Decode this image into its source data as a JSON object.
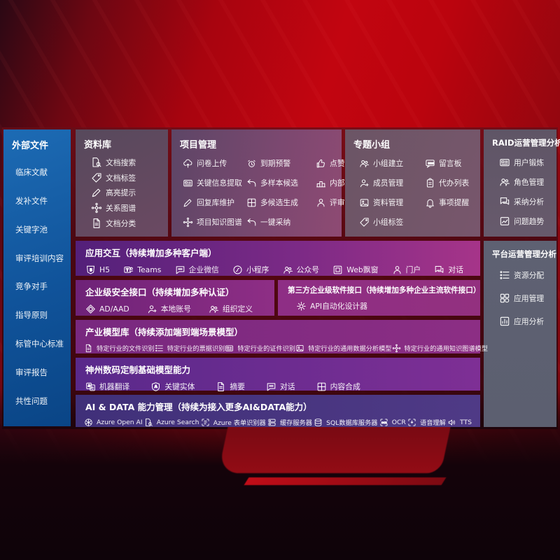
{
  "colors": {
    "background_red": "#c20510",
    "sidebar_blue": "#10539a",
    "panel_gray": "#6b4962",
    "row_purple": "#7c2a86",
    "row_magenta": "#a63489",
    "row_indigo": "#403079",
    "text": "#ffffff"
  },
  "sidebar": {
    "title": "外部文件",
    "items": [
      {
        "label": "临床文献"
      },
      {
        "label": "发补文件"
      },
      {
        "label": "关键字池"
      },
      {
        "label": "审评培训内容"
      },
      {
        "label": "竞争对手"
      },
      {
        "label": "指导原则"
      },
      {
        "label": "标管中心标准"
      },
      {
        "label": "审评报告"
      },
      {
        "label": "共性问题"
      }
    ]
  },
  "panels": {
    "library": {
      "title": "资料库",
      "items": [
        {
          "label": "文档搜索",
          "icon": "doc-search"
        },
        {
          "label": "文档标签",
          "icon": "tag"
        },
        {
          "label": "高亮提示",
          "icon": "pen"
        },
        {
          "label": "关系图谱",
          "icon": "graph"
        },
        {
          "label": "文档分类",
          "icon": "doc"
        }
      ]
    },
    "project": {
      "title": "项目管理",
      "items": [
        {
          "label": "问卷上传",
          "icon": "cloud-up"
        },
        {
          "label": "到期预警",
          "icon": "alarm"
        },
        {
          "label": "点赞感谢",
          "icon": "thumb"
        },
        {
          "label": "关键信息提取",
          "icon": "card"
        },
        {
          "label": "多样本候选",
          "icon": "reply"
        },
        {
          "label": "内部专家排名",
          "icon": "podium"
        },
        {
          "label": "回复库维护",
          "icon": "pen"
        },
        {
          "label": "多候选生成",
          "icon": "puzzle"
        },
        {
          "label": "评审员画像",
          "icon": "person"
        },
        {
          "label": "项目知识图谱",
          "icon": "graph"
        },
        {
          "label": "一键采纳",
          "icon": "reply"
        }
      ]
    },
    "groups": {
      "title": "专题小组",
      "items": [
        {
          "label": "小组建立",
          "icon": "people"
        },
        {
          "label": "留言板",
          "icon": "bbs"
        },
        {
          "label": "成员管理",
          "icon": "person-add"
        },
        {
          "label": "代办列表",
          "icon": "clipboard"
        },
        {
          "label": "资料管理",
          "icon": "photo"
        },
        {
          "label": "事项提醒",
          "icon": "bell"
        },
        {
          "label": "小组标签",
          "icon": "tag"
        }
      ]
    },
    "raid": {
      "title": "RAID运营管理分析",
      "items": [
        {
          "label": "用户锻炼",
          "icon": "card"
        },
        {
          "label": "角色管理",
          "icon": "people"
        },
        {
          "label": "采纳分析",
          "icon": "chat2"
        },
        {
          "label": "问题趋势",
          "icon": "trend"
        }
      ]
    },
    "platform": {
      "title": "平台运营管理分析",
      "items": [
        {
          "label": "资源分配",
          "icon": "list"
        },
        {
          "label": "应用管理",
          "icon": "grid"
        },
        {
          "label": "应用分析",
          "icon": "chart"
        }
      ]
    },
    "interaction": {
      "title": "应用交互（持续增加多种客户端）",
      "items": [
        {
          "label": "H5",
          "icon": "h5"
        },
        {
          "label": "Teams",
          "icon": "teams"
        },
        {
          "label": "企业微信",
          "icon": "chat"
        },
        {
          "label": "小程序",
          "icon": "mini"
        },
        {
          "label": "公众号",
          "icon": "people"
        },
        {
          "label": "Web飘窗",
          "icon": "window"
        },
        {
          "label": "门户",
          "icon": "person"
        },
        {
          "label": "对话",
          "icon": "chat2"
        }
      ]
    },
    "security": {
      "title": "企业级安全接口（持续增加多种认证）",
      "items": [
        {
          "label": "AD/AAD",
          "icon": "diamond"
        },
        {
          "label": "本地账号",
          "icon": "person-add"
        },
        {
          "label": "组织定义",
          "icon": "people"
        }
      ]
    },
    "thirdparty": {
      "title": "第三方企业级软件接口（持续增加多种企业主流软件接口）",
      "items": [
        {
          "label": "API自动化设计器",
          "icon": "gear"
        }
      ]
    },
    "models": {
      "title": "产业模型库（持续添加端到端场景模型）",
      "items": [
        {
          "label": "特定行业的文件识别",
          "icon": "doc"
        },
        {
          "label": "特定行业的票据识别",
          "icon": "list"
        },
        {
          "label": "特定行业的证件识别",
          "icon": "card"
        },
        {
          "label": "特定行业的通用数据分析模型",
          "icon": "photo"
        },
        {
          "label": "特定行业的通用知识图谱模型",
          "icon": "graph"
        }
      ]
    },
    "base": {
      "title": "神州数码定制基础模型能力",
      "items": [
        {
          "label": "机器翻译",
          "icon": "translate"
        },
        {
          "label": "关键实体",
          "icon": "shield"
        },
        {
          "label": "摘要",
          "icon": "doc"
        },
        {
          "label": "对话",
          "icon": "chat"
        },
        {
          "label": "内容合成",
          "icon": "puzzle"
        }
      ]
    },
    "aidata": {
      "title": "AI & DATA 能力管理（持续为接入更多AI&DATA能力）",
      "items": [
        {
          "label": "Azure Open AI",
          "icon": "openai"
        },
        {
          "label": "Azure Search",
          "icon": "doc-search"
        },
        {
          "label": "Azure 表单识别器",
          "icon": "formrec"
        },
        {
          "label": "缓存服务器",
          "icon": "server"
        },
        {
          "label": "SQL数据库服务器",
          "icon": "db"
        },
        {
          "label": "OCR",
          "icon": "ocr"
        },
        {
          "label": "语音理解",
          "icon": "mic"
        },
        {
          "label": "TTS",
          "icon": "speaker"
        }
      ]
    }
  }
}
